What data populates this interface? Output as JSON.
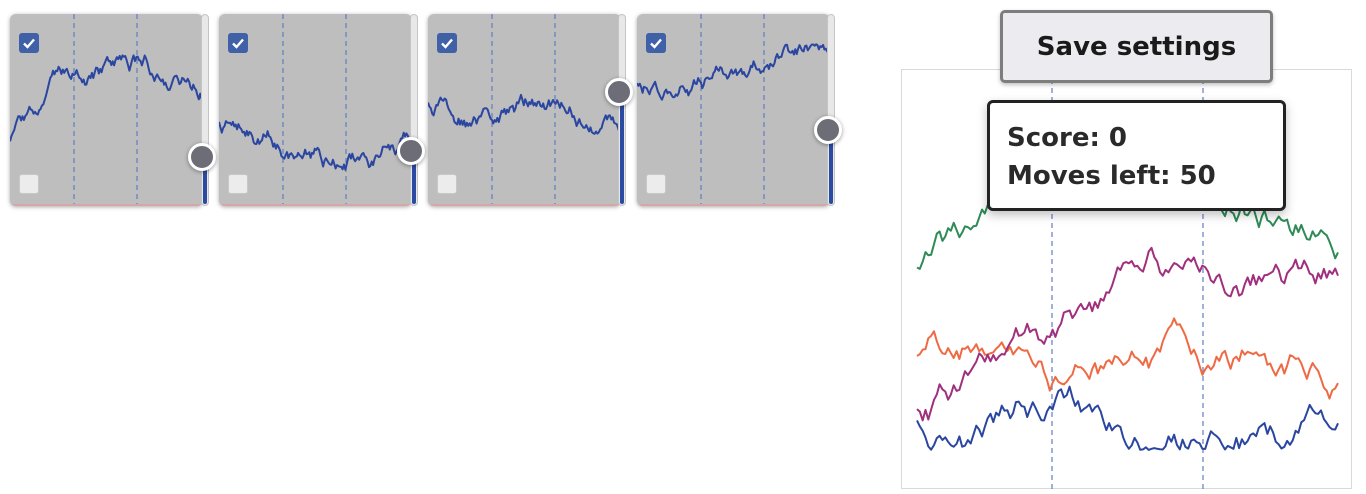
{
  "toolbar": {
    "save_label": "Save settings"
  },
  "status": {
    "score_text": "Score: 0",
    "moves_text": "Moves left: 50"
  },
  "panels": [
    {
      "checked_top": true,
      "checked_bottom": false,
      "slider_fraction": 0.24
    },
    {
      "checked_top": true,
      "checked_bottom": false,
      "slider_fraction": 0.27
    },
    {
      "checked_top": true,
      "checked_bottom": false,
      "slider_fraction": 0.58
    },
    {
      "checked_top": true,
      "checked_bottom": false,
      "slider_fraction": 0.38
    }
  ],
  "colors": {
    "panel_series": "#2b46a0",
    "series": [
      "#ef6a44",
      "#2e8b57",
      "#a0307e",
      "#2b46a0"
    ],
    "guide": "#5f7fc0",
    "slider_fill": "#2b4aa2",
    "checkbox": "#4060a8"
  },
  "icons": {
    "checkbox_checked": "check-icon"
  }
}
